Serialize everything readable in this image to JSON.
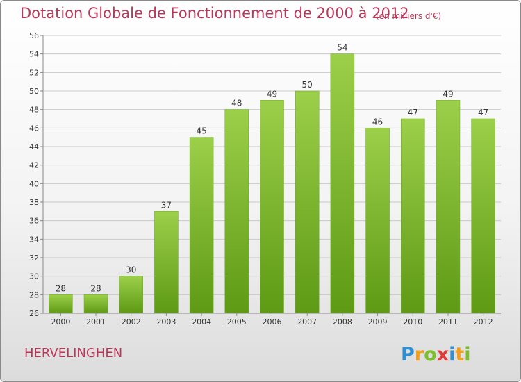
{
  "title": "Dotation Globale de Fonctionnement de 2000 à 2012",
  "subtitle": "(en milliers d'€)",
  "commune": "HERVELINGHEN",
  "logo": {
    "name": "Proxiti",
    "letters": [
      "P",
      "r",
      "o",
      "x",
      "i",
      "t",
      "i"
    ]
  },
  "colors": {
    "title": "#b8385a",
    "bar_top": "#9ccf4a",
    "bar_bottom": "#5e9a14",
    "grid": "#c9c9c9",
    "axis_text": "#333333"
  },
  "chart_data": {
    "type": "bar",
    "title": "Dotation Globale de Fonctionnement de 2000 à 2012",
    "subtitle": "(en milliers d'€)",
    "xlabel": "",
    "ylabel": "",
    "categories": [
      "2000",
      "2001",
      "2002",
      "2003",
      "2004",
      "2005",
      "2006",
      "2007",
      "2008",
      "2009",
      "2010",
      "2011",
      "2012"
    ],
    "values": [
      28,
      28,
      30,
      37,
      45,
      48,
      49,
      50,
      54,
      46,
      47,
      49,
      47
    ],
    "ylim": [
      26,
      56
    ],
    "yticks": [
      26,
      28,
      30,
      32,
      34,
      36,
      38,
      40,
      42,
      44,
      46,
      48,
      50,
      52,
      54,
      56
    ],
    "grid": true,
    "data_labels": true
  }
}
